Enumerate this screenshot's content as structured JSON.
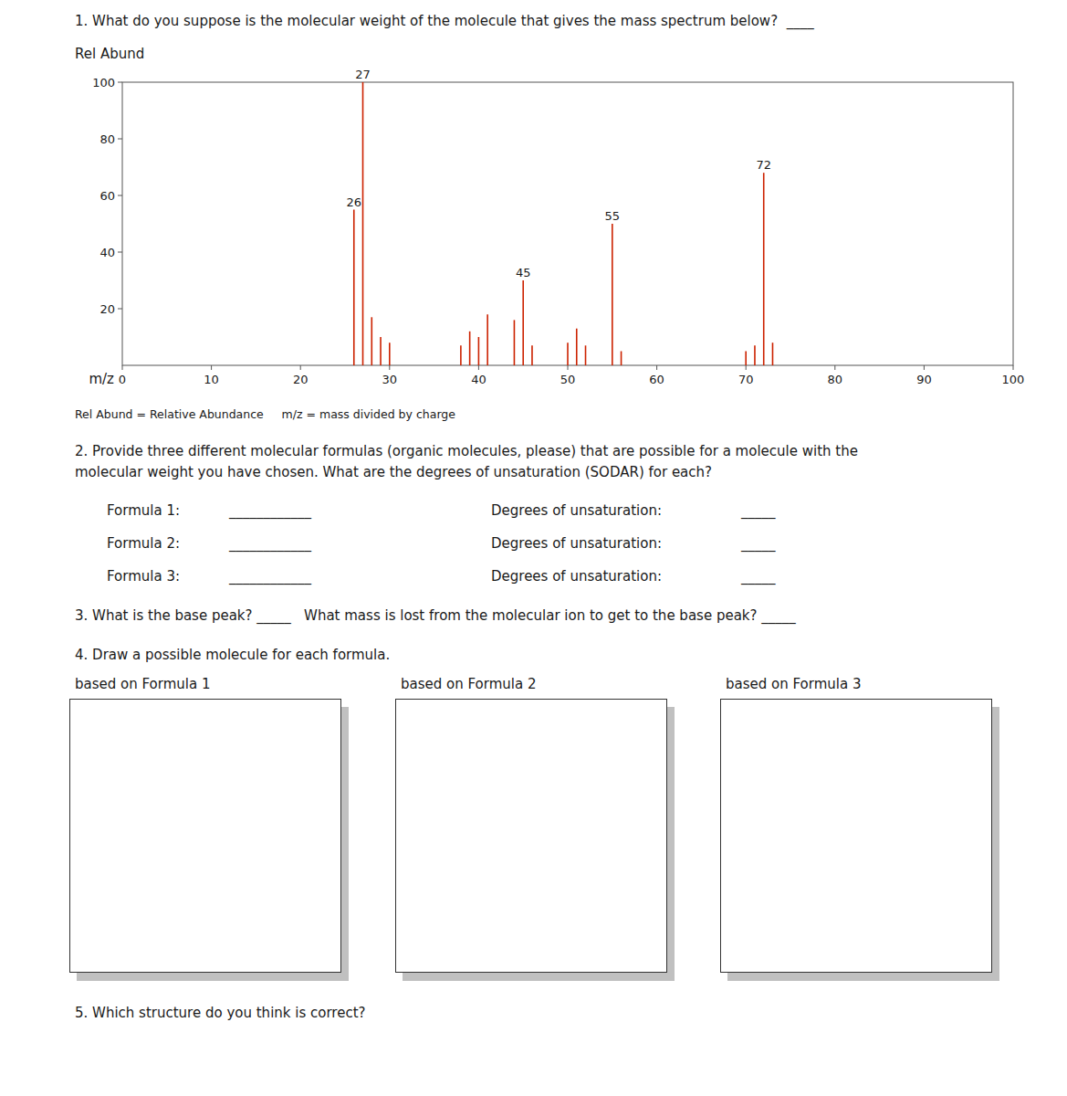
{
  "chart_data": {
    "type": "stick",
    "title": "1. What do you suppose is the molecular weight of the molecule that gives the mass spectrum below?  ____",
    "x_label": "m/z",
    "y_label": "Rel Abund",
    "x": [
      26,
      27,
      28,
      29,
      30,
      38,
      39,
      40,
      41,
      44,
      45,
      46,
      50,
      51,
      52,
      55,
      56,
      70,
      71,
      72,
      73
    ],
    "values": [
      55,
      100,
      17,
      10,
      8,
      7,
      12,
      10,
      18,
      16,
      30,
      7,
      8,
      13,
      7,
      50,
      5,
      5,
      7,
      68,
      8
    ],
    "color": "#cc2200",
    "xlim": [
      0,
      100
    ],
    "ylim": [
      0,
      100
    ],
    "xticks": [
      0,
      10,
      20,
      30,
      40,
      50,
      60,
      70,
      80,
      90,
      100
    ],
    "yticks": [
      20,
      40,
      60,
      80,
      100
    ],
    "grid": false,
    "annotations": [
      {
        "text": "27",
        "x": 27,
        "y": 100
      },
      {
        "text": "26",
        "x": 26,
        "y": 55
      },
      {
        "text": "45",
        "x": 45,
        "y": 30
      },
      {
        "text": "55",
        "x": 55,
        "y": 50
      },
      {
        "text": "72",
        "x": 72,
        "y": 68
      }
    ]
  },
  "worksheet": {
    "note": "Rel Abund = Relative Abundance     m/z = mass divided by charge",
    "question2": [
      "2. Provide three different molecular formulas (organic molecules, please) that are possible for a molecule with the",
      "molecular weight you have chosen. What are the degrees of unsaturation (SODAR) for each?"
    ],
    "formulas": [
      "Formula 1:",
      "Formula 2:",
      "Formula 3:"
    ],
    "blank_long": "____________",
    "degrees_text": "Degrees of unsaturation:",
    "blank_short": "_____",
    "question3": "3. What is the base peak? _____   What mass is lost from the molecular ion to get to the base peak? _____",
    "question4": "4. Draw a possible molecule for each formula.",
    "box_labels": [
      "based on Formula 1",
      "based on Formula 2",
      "based on Formula 3"
    ],
    "question5": "5. Which structure do you think is correct?"
  }
}
